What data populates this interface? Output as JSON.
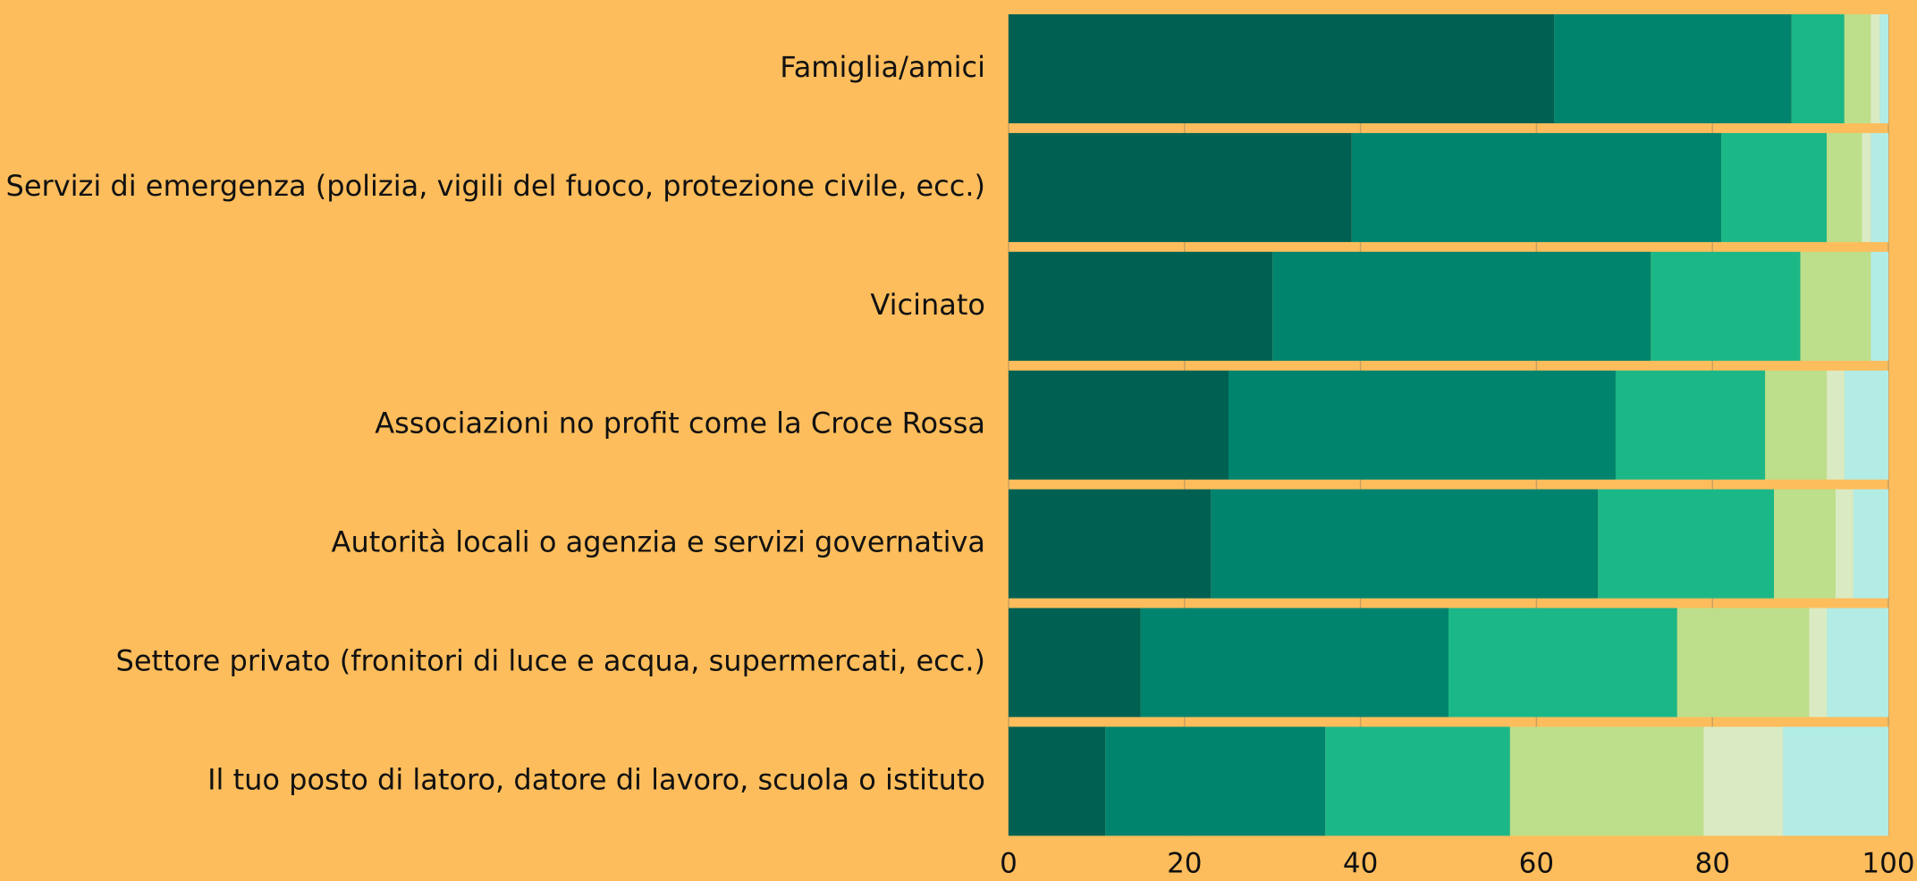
{
  "chart_data": {
    "type": "bar",
    "orientation": "horizontal",
    "categories": [
      "Famiglia/amici",
      "Servizi di emergenza (polizia, vigili del fuoco, protezione civile, ecc.)",
      "Vicinato",
      "Associazioni no profit come la Croce Rossa",
      "Autorità locali o agenzia e servizi governativa",
      "Settore privato (fronitori di luce e acqua, supermercati, ecc.)",
      "Il tuo posto di latoro, datore di lavoro, scuola o istituto"
    ],
    "series": [
      {
        "color": "#006152",
        "values": [
          62,
          39,
          30,
          25,
          23,
          15,
          11
        ]
      },
      {
        "color": "#00846e",
        "values": [
          27,
          42,
          43,
          44,
          44,
          35,
          25
        ]
      },
      {
        "color": "#1cb787",
        "values": [
          6,
          12,
          17,
          17,
          20,
          26,
          21
        ]
      },
      {
        "color": "#bddf8b",
        "values": [
          3,
          4,
          8,
          7,
          7,
          15,
          22
        ]
      },
      {
        "color": "#daebc3",
        "values": [
          1,
          1,
          0,
          2,
          2,
          2,
          9
        ]
      },
      {
        "color": "#b3ece4",
        "values": [
          1,
          2,
          2,
          5,
          4,
          7,
          12
        ]
      }
    ],
    "stacked": true,
    "xlim": [
      0,
      100
    ],
    "xticks": [
      0,
      20,
      40,
      60,
      80,
      100
    ],
    "grid": true
  }
}
